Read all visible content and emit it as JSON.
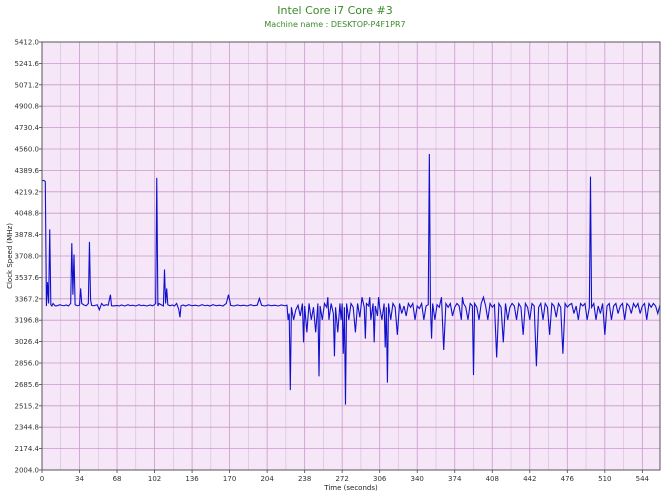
{
  "chart_data": {
    "type": "line",
    "title": "Intel Core i7 Core #3",
    "subtitle": "Machine name : DESKTOP-P4F1PR7",
    "xlabel": "Time (seconds)",
    "ylabel": "Clock Speed (MHz)",
    "xlim": [
      0,
      560
    ],
    "ylim": [
      2004.0,
      5412.0
    ],
    "xticks": [
      "0",
      "34",
      "68",
      "102",
      "136",
      "170",
      "204",
      "238",
      "272",
      "306",
      "340",
      "374",
      "408",
      "442",
      "476",
      "510",
      "544"
    ],
    "yticks": [
      "5412.0",
      "5241.6",
      "5071.2",
      "4900.8",
      "4730.4",
      "4560.0",
      "4389.6",
      "4219.2",
      "4048.8",
      "3878.4",
      "3708.0",
      "3537.6",
      "3367.2",
      "3196.8",
      "3026.4",
      "2856.0",
      "2685.6",
      "2515.2",
      "2344.8",
      "2174.4",
      "2004.0"
    ],
    "grid": true,
    "background": "#f5e6f8",
    "grid_color": "#cc99cc",
    "line_color": "#1010cc",
    "series": [
      {
        "values": [
          [
            0,
            4305
          ],
          [
            1,
            4310
          ],
          [
            2,
            4308
          ],
          [
            3,
            4300
          ],
          [
            4,
            3310
          ],
          [
            5,
            3500
          ],
          [
            6,
            3330
          ],
          [
            7,
            3920
          ],
          [
            8,
            3320
          ],
          [
            9,
            3310
          ],
          [
            10,
            3330
          ],
          [
            12,
            3310
          ],
          [
            14,
            3312
          ],
          [
            16,
            3320
          ],
          [
            18,
            3315
          ],
          [
            20,
            3312
          ],
          [
            22,
            3318
          ],
          [
            24,
            3310
          ],
          [
            26,
            3330
          ],
          [
            27,
            3810
          ],
          [
            28,
            3400
          ],
          [
            29,
            3720
          ],
          [
            30,
            3320
          ],
          [
            32,
            3312
          ],
          [
            34,
            3316
          ],
          [
            35,
            3450
          ],
          [
            36,
            3330
          ],
          [
            38,
            3318
          ],
          [
            40,
            3312
          ],
          [
            42,
            3330
          ],
          [
            43,
            3820
          ],
          [
            44,
            3360
          ],
          [
            45,
            3315
          ],
          [
            47,
            3312
          ],
          [
            50,
            3320
          ],
          [
            52,
            3280
          ],
          [
            54,
            3330
          ],
          [
            56,
            3312
          ],
          [
            58,
            3320
          ],
          [
            60,
            3316
          ],
          [
            62,
            3400
          ],
          [
            63,
            3312
          ],
          [
            65,
            3310
          ],
          [
            68,
            3314
          ],
          [
            70,
            3310
          ],
          [
            72,
            3318
          ],
          [
            75,
            3310
          ],
          [
            78,
            3320
          ],
          [
            80,
            3312
          ],
          [
            82,
            3316
          ],
          [
            85,
            3310
          ],
          [
            88,
            3320
          ],
          [
            90,
            3312
          ],
          [
            92,
            3316
          ],
          [
            95,
            3310
          ],
          [
            98,
            3318
          ],
          [
            100,
            3312
          ],
          [
            102,
            3320
          ],
          [
            103,
            3330
          ],
          [
            104,
            4330
          ],
          [
            105,
            3310
          ],
          [
            106,
            3330
          ],
          [
            108,
            3320
          ],
          [
            110,
            3310
          ],
          [
            111,
            3600
          ],
          [
            112,
            3330
          ],
          [
            113,
            3450
          ],
          [
            114,
            3320
          ],
          [
            116,
            3312
          ],
          [
            118,
            3318
          ],
          [
            120,
            3310
          ],
          [
            122,
            3330
          ],
          [
            124,
            3280
          ],
          [
            125,
            3220
          ],
          [
            126,
            3312
          ],
          [
            128,
            3318
          ],
          [
            130,
            3310
          ],
          [
            133,
            3320
          ],
          [
            136,
            3312
          ],
          [
            139,
            3316
          ],
          [
            142,
            3310
          ],
          [
            145,
            3320
          ],
          [
            148,
            3312
          ],
          [
            150,
            3316
          ],
          [
            152,
            3310
          ],
          [
            155,
            3320
          ],
          [
            158,
            3312
          ],
          [
            161,
            3316
          ],
          [
            164,
            3310
          ],
          [
            167,
            3330
          ],
          [
            169,
            3400
          ],
          [
            171,
            3315
          ],
          [
            174,
            3310
          ],
          [
            177,
            3318
          ],
          [
            180,
            3312
          ],
          [
            183,
            3316
          ],
          [
            186,
            3310
          ],
          [
            189,
            3320
          ],
          [
            192,
            3312
          ],
          [
            195,
            3316
          ],
          [
            197,
            3370
          ],
          [
            199,
            3316
          ],
          [
            202,
            3310
          ],
          [
            205,
            3318
          ],
          [
            208,
            3312
          ],
          [
            211,
            3316
          ],
          [
            214,
            3310
          ],
          [
            217,
            3318
          ],
          [
            220,
            3312
          ],
          [
            222,
            3316
          ],
          [
            223,
            3200
          ],
          [
            224,
            3250
          ],
          [
            225,
            2640
          ],
          [
            226,
            3300
          ],
          [
            228,
            3200
          ],
          [
            230,
            3280
          ],
          [
            232,
            3316
          ],
          [
            234,
            3230
          ],
          [
            236,
            3330
          ],
          [
            237,
            3020
          ],
          [
            238,
            3310
          ],
          [
            240,
            3100
          ],
          [
            242,
            3330
          ],
          [
            244,
            3200
          ],
          [
            246,
            3300
          ],
          [
            248,
            3100
          ],
          [
            250,
            3330
          ],
          [
            251,
            2750
          ],
          [
            252,
            3310
          ],
          [
            254,
            3200
          ],
          [
            256,
            3330
          ],
          [
            258,
            3300
          ],
          [
            259,
            3380
          ],
          [
            260,
            3200
          ],
          [
            262,
            3330
          ],
          [
            264,
            3250
          ],
          [
            265,
            2910
          ],
          [
            266,
            3300
          ],
          [
            268,
            3100
          ],
          [
            270,
            3330
          ],
          [
            271,
            3200
          ],
          [
            272,
            3330
          ],
          [
            273,
            2930
          ],
          [
            274,
            3300
          ],
          [
            275,
            2525
          ],
          [
            276,
            3330
          ],
          [
            278,
            3200
          ],
          [
            280,
            3330
          ],
          [
            282,
            3300
          ],
          [
            284,
            3100
          ],
          [
            286,
            3330
          ],
          [
            288,
            3220
          ],
          [
            290,
            3380
          ],
          [
            292,
            3300
          ],
          [
            293,
            3050
          ],
          [
            294,
            3330
          ],
          [
            296,
            3310
          ],
          [
            297,
            3380
          ],
          [
            298,
            3200
          ],
          [
            300,
            3330
          ],
          [
            301,
            3020
          ],
          [
            302,
            3310
          ],
          [
            304,
            3230
          ],
          [
            305,
            3380
          ],
          [
            306,
            3300
          ],
          [
            308,
            3200
          ],
          [
            310,
            3330
          ],
          [
            311,
            2980
          ],
          [
            312,
            3300
          ],
          [
            313,
            2700
          ],
          [
            314,
            3330
          ],
          [
            316,
            3200
          ],
          [
            318,
            3330
          ],
          [
            320,
            3300
          ],
          [
            322,
            3080
          ],
          [
            324,
            3330
          ],
          [
            326,
            3250
          ],
          [
            328,
            3310
          ],
          [
            330,
            3230
          ],
          [
            332,
            3330
          ],
          [
            334,
            3300
          ],
          [
            336,
            3330
          ],
          [
            338,
            3200
          ],
          [
            340,
            3310
          ],
          [
            342,
            3290
          ],
          [
            344,
            3330
          ],
          [
            346,
            3200
          ],
          [
            348,
            3310
          ],
          [
            350,
            3320
          ],
          [
            351,
            4520
          ],
          [
            352,
            3300
          ],
          [
            353,
            3050
          ],
          [
            354,
            3330
          ],
          [
            356,
            3200
          ],
          [
            358,
            3320
          ],
          [
            360,
            3300
          ],
          [
            362,
            3380
          ],
          [
            364,
            2960
          ],
          [
            366,
            3330
          ],
          [
            368,
            3300
          ],
          [
            370,
            3330
          ],
          [
            372,
            3230
          ],
          [
            374,
            3300
          ],
          [
            376,
            3330
          ],
          [
            378,
            3310
          ],
          [
            380,
            3200
          ],
          [
            381,
            3380
          ],
          [
            382,
            3330
          ],
          [
            384,
            3300
          ],
          [
            386,
            3200
          ],
          [
            388,
            3330
          ],
          [
            390,
            3310
          ],
          [
            391,
            2760
          ],
          [
            392,
            3330
          ],
          [
            394,
            3300
          ],
          [
            396,
            3200
          ],
          [
            398,
            3330
          ],
          [
            400,
            3380
          ],
          [
            402,
            3310
          ],
          [
            404,
            3200
          ],
          [
            406,
            3330
          ],
          [
            408,
            3300
          ],
          [
            410,
            3320
          ],
          [
            412,
            2900
          ],
          [
            414,
            3330
          ],
          [
            416,
            3300
          ],
          [
            418,
            3020
          ],
          [
            420,
            3330
          ],
          [
            422,
            3200
          ],
          [
            424,
            3300
          ],
          [
            426,
            3330
          ],
          [
            428,
            3310
          ],
          [
            430,
            3200
          ],
          [
            432,
            3330
          ],
          [
            434,
            3300
          ],
          [
            436,
            3080
          ],
          [
            438,
            3330
          ],
          [
            440,
            3300
          ],
          [
            442,
            3200
          ],
          [
            444,
            3330
          ],
          [
            446,
            3310
          ],
          [
            448,
            2830
          ],
          [
            450,
            3300
          ],
          [
            452,
            3330
          ],
          [
            454,
            3200
          ],
          [
            456,
            3330
          ],
          [
            458,
            3300
          ],
          [
            460,
            3080
          ],
          [
            462,
            3330
          ],
          [
            464,
            3310
          ],
          [
            466,
            3220
          ],
          [
            468,
            3330
          ],
          [
            470,
            3300
          ],
          [
            472,
            2930
          ],
          [
            474,
            3330
          ],
          [
            476,
            3300
          ],
          [
            478,
            3320
          ],
          [
            480,
            3330
          ],
          [
            482,
            3250
          ],
          [
            484,
            3310
          ],
          [
            486,
            3200
          ],
          [
            488,
            3330
          ],
          [
            490,
            3310
          ],
          [
            492,
            3330
          ],
          [
            494,
            3200
          ],
          [
            496,
            3300
          ],
          [
            497,
            4340
          ],
          [
            498,
            3300
          ],
          [
            500,
            3330
          ],
          [
            502,
            3200
          ],
          [
            504,
            3310
          ],
          [
            506,
            3250
          ],
          [
            508,
            3330
          ],
          [
            510,
            3080
          ],
          [
            512,
            3310
          ],
          [
            514,
            3330
          ],
          [
            516,
            3200
          ],
          [
            518,
            3310
          ],
          [
            520,
            3330
          ],
          [
            522,
            3250
          ],
          [
            524,
            3310
          ],
          [
            526,
            3330
          ],
          [
            528,
            3200
          ],
          [
            530,
            3330
          ],
          [
            532,
            3310
          ],
          [
            534,
            3250
          ],
          [
            536,
            3330
          ],
          [
            538,
            3300
          ],
          [
            540,
            3330
          ],
          [
            542,
            3250
          ],
          [
            544,
            3310
          ],
          [
            546,
            3330
          ],
          [
            548,
            3200
          ],
          [
            550,
            3330
          ],
          [
            552,
            3300
          ],
          [
            554,
            3330
          ],
          [
            556,
            3310
          ],
          [
            558,
            3250
          ],
          [
            560,
            3320
          ]
        ]
      }
    ]
  }
}
